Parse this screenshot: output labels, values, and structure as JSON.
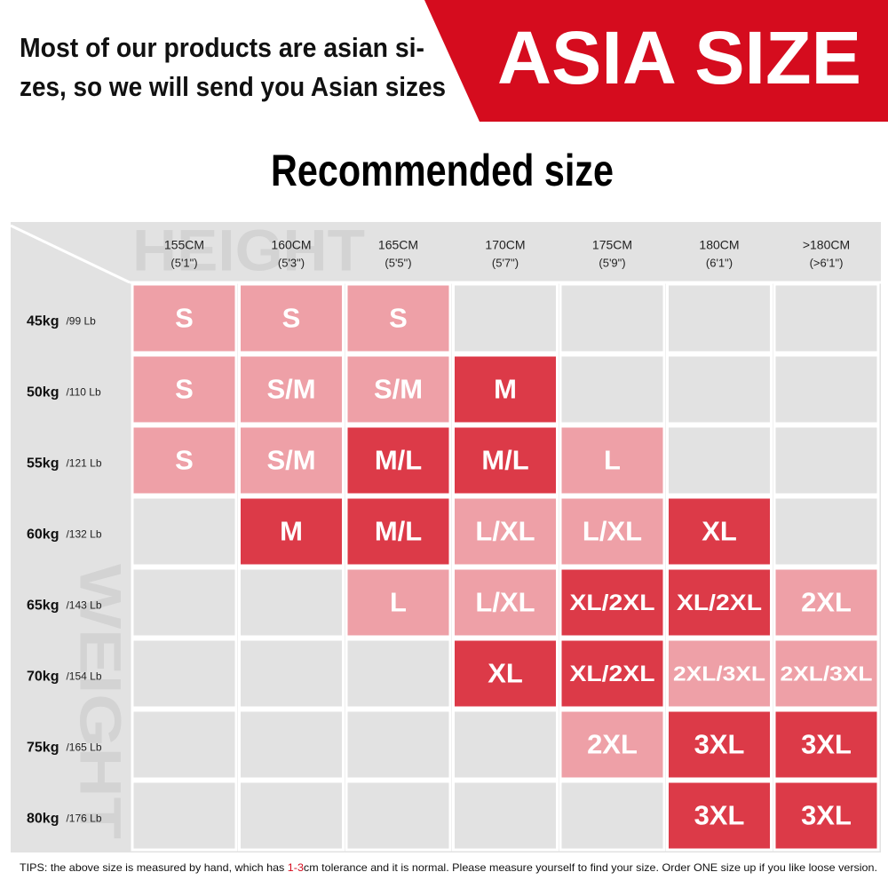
{
  "header": {
    "note_lines": [
      "Most of our products are asian si-",
      "zes, so we will send you Asian sizes"
    ],
    "badge": "ASIA SIZE",
    "badge_color": "#d50c1e"
  },
  "title": "Recommended size",
  "table": {
    "watermark_top": "HEIGHT",
    "watermark_side": "WEIGHT",
    "columns": [
      {
        "cm": "155CM",
        "ft": "(5'1\")"
      },
      {
        "cm": "160CM",
        "ft": "(5'3\")"
      },
      {
        "cm": "165CM",
        "ft": "(5'5\")"
      },
      {
        "cm": "170CM",
        "ft": "(5'7\")"
      },
      {
        "cm": "175CM",
        "ft": "(5'9\")"
      },
      {
        "cm": "180CM",
        "ft": "(6'1\")"
      },
      {
        "cm": ">180CM",
        "ft": "(>6'1\")"
      }
    ],
    "rows": [
      {
        "kg": "45kg",
        "lb": "/99 Lb",
        "cells": [
          {
            "text": "S",
            "color": "#eea0a7"
          },
          {
            "text": "S",
            "color": "#eea0a7"
          },
          {
            "text": "S",
            "color": "#eea0a7"
          },
          null,
          null,
          null,
          null
        ]
      },
      {
        "kg": "50kg",
        "lb": "/110 Lb",
        "cells": [
          {
            "text": "S",
            "color": "#eea0a7"
          },
          {
            "text": "S/M",
            "color": "#eea0a7"
          },
          {
            "text": "S/M",
            "color": "#eea0a7"
          },
          {
            "text": "M",
            "color": "#dc3a48"
          },
          null,
          null,
          null
        ]
      },
      {
        "kg": "55kg",
        "lb": "/121 Lb",
        "cells": [
          {
            "text": "S",
            "color": "#eea0a7"
          },
          {
            "text": "S/M",
            "color": "#eea0a7"
          },
          {
            "text": "M/L",
            "color": "#dc3a48"
          },
          {
            "text": "M/L",
            "color": "#dc3a48"
          },
          {
            "text": "L",
            "color": "#eea0a7"
          },
          null,
          null
        ]
      },
      {
        "kg": "60kg",
        "lb": "/132 Lb",
        "cells": [
          null,
          {
            "text": "M",
            "color": "#dc3a48"
          },
          {
            "text": "M/L",
            "color": "#dc3a48"
          },
          {
            "text": "L/XL",
            "color": "#eea0a7"
          },
          {
            "text": "L/XL",
            "color": "#eea0a7"
          },
          {
            "text": "XL",
            "color": "#dc3a48"
          },
          null
        ]
      },
      {
        "kg": "65kg",
        "lb": "/143 Lb",
        "cells": [
          null,
          null,
          {
            "text": "L",
            "color": "#eea0a7"
          },
          {
            "text": "L/XL",
            "color": "#eea0a7"
          },
          {
            "text": "XL/2XL",
            "color": "#dc3a48"
          },
          {
            "text": "XL/2XL",
            "color": "#dc3a48"
          },
          {
            "text": "2XL",
            "color": "#eea0a7"
          }
        ]
      },
      {
        "kg": "70kg",
        "lb": "/154 Lb",
        "cells": [
          null,
          null,
          null,
          {
            "text": "XL",
            "color": "#dc3a48"
          },
          {
            "text": "XL/2XL",
            "color": "#dc3a48"
          },
          {
            "text": "2XL/3XL",
            "color": "#eea0a7"
          },
          {
            "text": "2XL/3XL",
            "color": "#eea0a7"
          }
        ]
      },
      {
        "kg": "75kg",
        "lb": "/165 Lb",
        "cells": [
          null,
          null,
          null,
          null,
          {
            "text": "2XL",
            "color": "#eea0a7"
          },
          {
            "text": "3XL",
            "color": "#dc3a48"
          },
          {
            "text": "3XL",
            "color": "#dc3a48"
          }
        ]
      },
      {
        "kg": "80kg",
        "lb": "/176 Lb",
        "cells": [
          null,
          null,
          null,
          null,
          null,
          {
            "text": "3XL",
            "color": "#dc3a48"
          },
          {
            "text": "3XL",
            "color": "#dc3a48"
          }
        ]
      }
    ]
  },
  "tips": {
    "before": "TIPS:  the above size is measured by hand, which has ",
    "highlight": "1-3",
    "after": "cm tolerance and it is normal. Please measure yourself to find your size. Order ONE size up if you like loose version."
  }
}
